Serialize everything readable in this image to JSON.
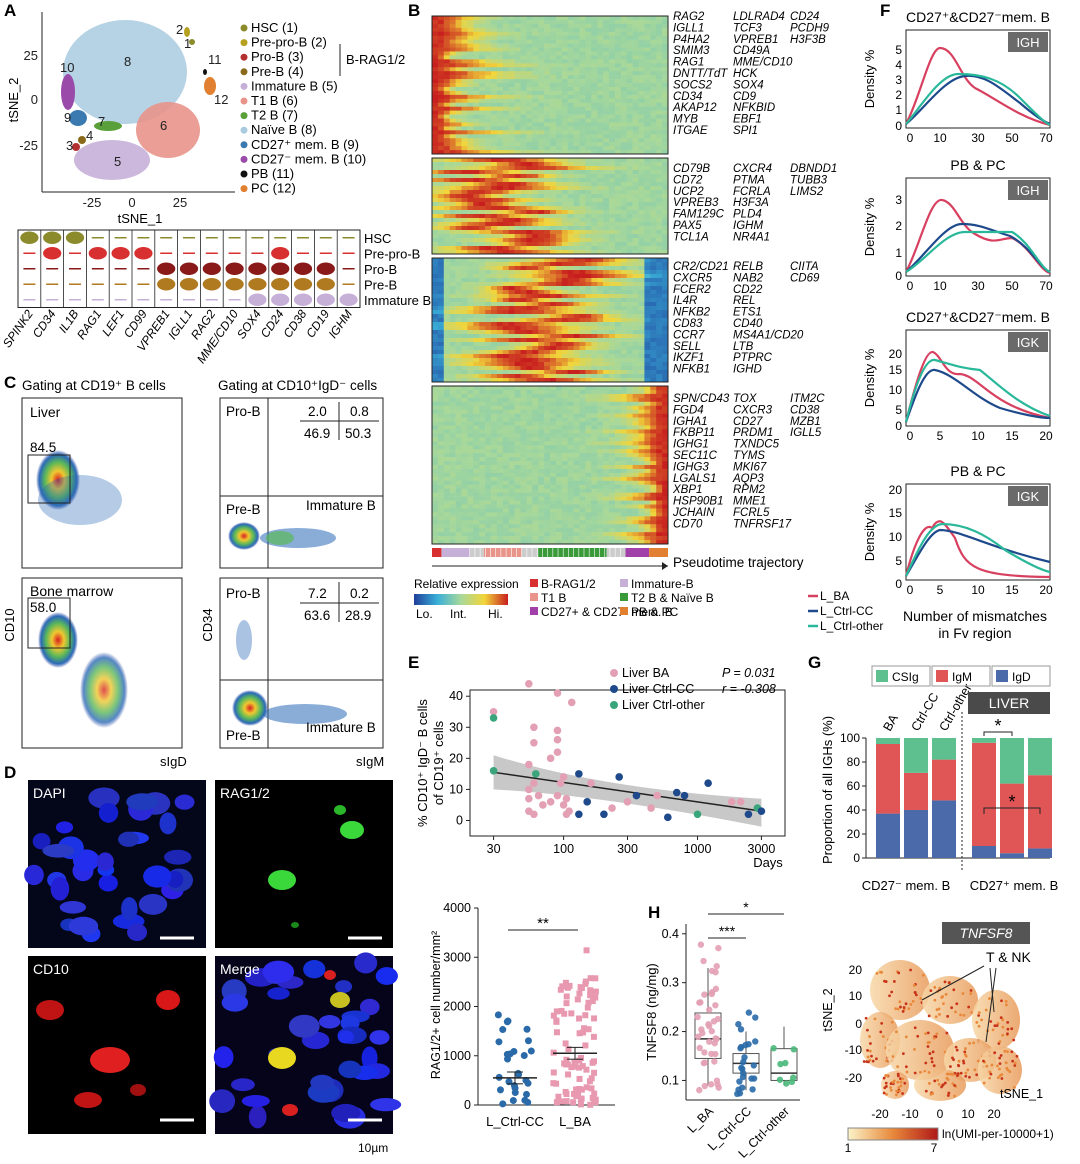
{
  "panels": {
    "A": "A",
    "B": "B",
    "C": "C",
    "D": "D",
    "E": "E",
    "F": "F",
    "G": "G",
    "H": "H"
  },
  "panelA": {
    "xlabel": "tSNE_1",
    "ylabel": "tSNE_2",
    "xticks": [
      "-25",
      "0",
      "25"
    ],
    "yticks": [
      "25",
      "0",
      "-25"
    ],
    "cluster_labels": [
      "1",
      "2",
      "3",
      "4",
      "5",
      "6",
      "7",
      "8",
      "9",
      "10",
      "11",
      "12"
    ],
    "legend": [
      {
        "label": "HSC (1)",
        "color": "#8b8b2b"
      },
      {
        "label": "Pre-pro-B (2)",
        "color": "#b5a020"
      },
      {
        "label": "Pro-B (3)",
        "color": "#b33030"
      },
      {
        "label": "Pre-B (4)",
        "color": "#8a6a1a"
      },
      {
        "label": "Immature B (5)",
        "color": "#c7b0d8"
      },
      {
        "label": "T1 B (6)",
        "color": "#e8948a"
      },
      {
        "label": "T2 B (7)",
        "color": "#5aa03a"
      },
      {
        "label": "Naïve B (8)",
        "color": "#a9cbe0"
      },
      {
        "label": "CD27⁺ mem. B (9)",
        "color": "#3a7ab0"
      },
      {
        "label": "CD27⁻ mem. B (10)",
        "color": "#9a4aa8"
      },
      {
        "label": "PB (11)",
        "color": "#111111"
      },
      {
        "label": "PC (12)",
        "color": "#e08030"
      }
    ],
    "group_label": "B-RAG1/2",
    "violin_rows": [
      "HSC",
      "Pre-pro-B",
      "Pro-B",
      "Pre-B",
      "Immature B"
    ],
    "violin_genes": [
      "SPINK2",
      "CD34",
      "IL1B",
      "RAG1",
      "LEF1",
      "CD99",
      "VPREB1",
      "IGLL1",
      "RAG2",
      "MME/CD10",
      "SOX4",
      "CD24",
      "CD38",
      "CD19",
      "IGHM"
    ]
  },
  "panelB": {
    "block1": [
      "RAG2",
      "LDLRAD4",
      "CD24",
      "IGLL1",
      "TCF3",
      "PCDH9",
      "P4HA2",
      "VPREB1",
      "H3F3B",
      "SMIM3",
      "CD49A",
      "",
      "RAG1",
      "MME/CD10",
      "",
      "DNTT/TdT",
      "HCK",
      "",
      "SOCS2",
      "SOX4",
      "",
      "CD34",
      "CD9",
      "",
      "AKAP12",
      "NFKBID",
      "",
      "MYB",
      "EBF1",
      "",
      "ITGAE",
      "SPI1",
      ""
    ],
    "block2": [
      "CD79B",
      "CXCR4",
      "DBNDD1",
      "CD72",
      "PTMA",
      "TUBB3",
      "UCP2",
      "FCRLA",
      "LIMS2",
      "VPREB3",
      "H3F3A",
      "",
      "FAM129C",
      "PLD4",
      "",
      "PAX5",
      "IGHM",
      "",
      "TCL1A",
      "NR4A1",
      ""
    ],
    "block3": [
      "CR2/CD21",
      "RELB",
      "CIITA",
      "CXCR5",
      "NAB2",
      "CD69",
      "FCER2",
      "CD22",
      "",
      "IL4R",
      "REL",
      "",
      "NFKB2",
      "ETS1",
      "",
      "CD83",
      "CD40",
      "",
      "CCR7",
      "MS4A1/CD20",
      "",
      "SELL",
      "LTB",
      "",
      "IKZF1",
      "PTPRC",
      "",
      "NFKB1",
      "IGHD",
      ""
    ],
    "block4": [
      "SPN/CD43",
      "TOX",
      "ITM2C",
      "FGD4",
      "CXCR3",
      "CD38",
      "IGHA1",
      "CD27",
      "MZB1",
      "FKBP11",
      "PRDM1",
      "IGLL5",
      "IGHG1",
      "TXNDC5",
      "",
      "SEC11C",
      "TYMS",
      "",
      "IGHG3",
      "MKI67",
      "",
      "LGALS1",
      "AQP3",
      "",
      "XBP1",
      "RPM2",
      "",
      "HSP90B1",
      "MME1",
      "",
      "JCHAIN",
      "FCRL5",
      "",
      "CD70",
      "TNFRSF17",
      ""
    ],
    "trajectory": "Pseudotime trajectory",
    "legend_title": "Relative expression",
    "scale": [
      "Lo.",
      "Int.",
      "Hi."
    ],
    "types": [
      {
        "label": "B-RAG1/2",
        "color": "#d83030"
      },
      {
        "label": "Immature-B",
        "color": "#c7b0d8"
      },
      {
        "label": "T1 B",
        "color": "#e8948a"
      },
      {
        "label": "T2 B & Naïve B",
        "color": "#3a9a3a"
      },
      {
        "label": "CD27+ & CD27- mem. B",
        "color": "#a040a8"
      },
      {
        "label": "PB & PC",
        "color": "#e08030"
      }
    ]
  },
  "panelC": {
    "left_title": "Gating at CD19⁺ B cells",
    "right_title": "Gating at CD10⁺IgD⁻ cells",
    "liver": "Liver",
    "bone_marrow": "Bone marrow",
    "liver_pct": "84.5",
    "bm_pct": "58.0",
    "liver_quads": [
      "2.0",
      "0.8",
      "46.9",
      "50.3"
    ],
    "bm_quads": [
      "7.2",
      "0.2",
      "63.6",
      "28.9"
    ],
    "pro_b": "Pro-B",
    "pre_b": "Pre-B",
    "imm_b": "Immature B",
    "ylabel_left": "CD10",
    "xlabel_left": "sIgD",
    "ylabel_right": "CD34",
    "xlabel_right": "sIgM"
  },
  "panelD": {
    "dapi": "DAPI",
    "rag": "RAG1/2",
    "cd10": "CD10",
    "merge": "Merge",
    "scale": "10µm"
  },
  "panelE": {
    "ylabel1": "% CD10⁺ IgD⁻ B cells",
    "ylabel2": "of CD19⁺ cells",
    "xlabel": "Days",
    "xticks": [
      "30",
      "100",
      "300",
      "1000",
      "3000"
    ],
    "yticks": [
      "0",
      "10",
      "20",
      "30",
      "40"
    ],
    "legend": [
      {
        "label": "Liver BA",
        "color": "#e3a0b4"
      },
      {
        "label": "Liver Ctrl-CC",
        "color": "#1e4a8c"
      },
      {
        "label": "Liver Ctrl-other",
        "color": "#3aa57a"
      }
    ],
    "p": "P = 0.031",
    "r": "r = -0.308",
    "bar_ylabel": "RAG1/2+ cell number/mm²",
    "bar_yticks": [
      "0",
      "1000",
      "2000",
      "3000",
      "4000"
    ],
    "bar_groups": [
      "L_Ctrl-CC",
      "L_BA"
    ],
    "bar_means": [
      550,
      1050
    ],
    "sig": "**"
  },
  "panelF": {
    "titles": [
      "CD27⁺&CD27⁻mem. B",
      "PB & PC",
      "CD27⁺&CD27⁻mem. B",
      "PB & PC"
    ],
    "badges": [
      "IGH",
      "IGH",
      "IGK",
      "IGK"
    ],
    "ylabel": "Density %",
    "xticks_igh": [
      "0",
      "10",
      "30",
      "50",
      "70"
    ],
    "xticks_igk": [
      "0",
      "5",
      "10",
      "15",
      "20"
    ],
    "xlabel1": "Number of mismatches",
    "xlabel2": "in Fv region",
    "legend": [
      {
        "label": "L_BA",
        "color": "#d84060"
      },
      {
        "label": "L_Ctrl-CC",
        "color": "#1e4a8c"
      },
      {
        "label": "L_Ctrl-other",
        "color": "#2ab89a"
      }
    ]
  },
  "panelG": {
    "legend": [
      {
        "label": "CSIg",
        "color": "#5ec08f"
      },
      {
        "label": "IgM",
        "color": "#e05555"
      },
      {
        "label": "IgD",
        "color": "#4a6aaa"
      }
    ],
    "badge": "LIVER",
    "ylabel": "Proportion of all IGHs (%)",
    "yticks": [
      "0",
      "20",
      "40",
      "60",
      "80",
      "100"
    ],
    "bar_labels": [
      "BA",
      "Ctrl-CC",
      "Ctrl-other"
    ],
    "group_labels": [
      "CD27⁻ mem. B",
      "CD27⁺ mem. B"
    ],
    "bars": [
      {
        "IgD": 37,
        "IgM": 58,
        "CSIg": 5
      },
      {
        "IgD": 40,
        "IgM": 31,
        "CSIg": 29
      },
      {
        "IgD": 48,
        "IgM": 34,
        "CSIg": 18
      },
      {
        "IgD": 10,
        "IgM": 86,
        "CSIg": 4
      },
      {
        "IgD": 4,
        "IgM": 58,
        "CSIg": 38
      },
      {
        "IgD": 8,
        "IgM": 61,
        "CSIg": 31
      }
    ],
    "sig": "*"
  },
  "panelH": {
    "ylabel": "TNFSF8 (ng/mg)",
    "yticks": [
      "0.1",
      "0.2",
      "0.3",
      "0.4"
    ],
    "groups": [
      "L_BA",
      "L_Ctrl-CC",
      "L_Ctrl-other"
    ],
    "sig1": "***",
    "sig2": "*",
    "tsne_title": "TNFSF8",
    "tsne_label": "T & NK",
    "tsne_x": "tSNE_1",
    "tsne_y": "tSNE_2",
    "tsne_xticks": [
      "-20",
      "-10",
      "0",
      "10",
      "20"
    ],
    "tsne_yticks": [
      "20",
      "10",
      "0",
      "-10",
      "-20"
    ],
    "colorbar_ticks": [
      "1",
      "7"
    ],
    "colorbar_label": "ln(UMI-per-10000+1)"
  }
}
